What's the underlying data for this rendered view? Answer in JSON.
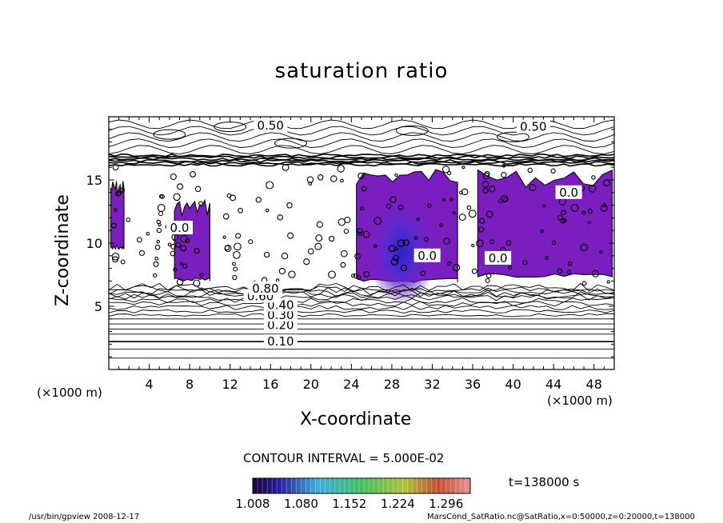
{
  "chart_data": {
    "type": "contour",
    "title": "saturation ratio",
    "xlabel": "X-coordinate",
    "ylabel": "Z-coordinate",
    "x_unit": "(×1000 m)",
    "y_unit": "(×1000 m)",
    "xlim": [
      0,
      50
    ],
    "ylim": [
      0,
      20
    ],
    "x_ticks": [
      4,
      8,
      12,
      16,
      20,
      24,
      28,
      32,
      36,
      40,
      44,
      48
    ],
    "y_ticks": [
      5,
      10,
      15
    ],
    "contour_labels": [
      {
        "text": "0.10",
        "x": 17,
        "z": 2.2
      },
      {
        "text": "0.20",
        "x": 17,
        "z": 3.5
      },
      {
        "text": "0.30",
        "x": 17,
        "z": 4.3
      },
      {
        "text": "0.40",
        "x": 17,
        "z": 5.1
      },
      {
        "text": "0.60",
        "x": 15,
        "z": 5.8
      },
      {
        "text": "0.80",
        "x": 15.5,
        "z": 6.4
      },
      {
        "text": "0.50",
        "x": 16,
        "z": 19.3
      },
      {
        "text": "0.50",
        "x": 42,
        "z": 19.2
      },
      {
        "text": "0.0",
        "x": 7,
        "z": 11.2
      },
      {
        "text": "0.0",
        "x": 31.5,
        "z": 9.0
      },
      {
        "text": "0.0",
        "x": 38.5,
        "z": 8.8
      },
      {
        "text": "0.0",
        "x": 45.5,
        "z": 14.0
      }
    ],
    "supersaturated_regions": [
      {
        "x": [
          0.2,
          1.5
        ],
        "z": [
          9.5,
          15.0
        ]
      },
      {
        "x": [
          6.5,
          10.0
        ],
        "z": [
          7.0,
          13.5
        ]
      },
      {
        "x": [
          24.5,
          34.5
        ],
        "z": [
          6.9,
          16.0
        ]
      },
      {
        "x": [
          36.5,
          49.8
        ],
        "z": [
          7.3,
          15.8
        ]
      }
    ],
    "contour_interval_label": "CONTOUR INTERVAL = 5.000E-02",
    "colorbar": {
      "min": 1.008,
      "max": 1.332,
      "tick_labels": [
        "1.008",
        "1.080",
        "1.152",
        "1.224",
        "1.296"
      ]
    },
    "time_label": "t=138000 s",
    "grid": false
  },
  "footer": {
    "left": "/usr/bin/gpview  2008-12-17",
    "right": "MarsCond_SatRatio.nc@SatRatio,x=0:50000,z=0:20000,t=138000"
  }
}
